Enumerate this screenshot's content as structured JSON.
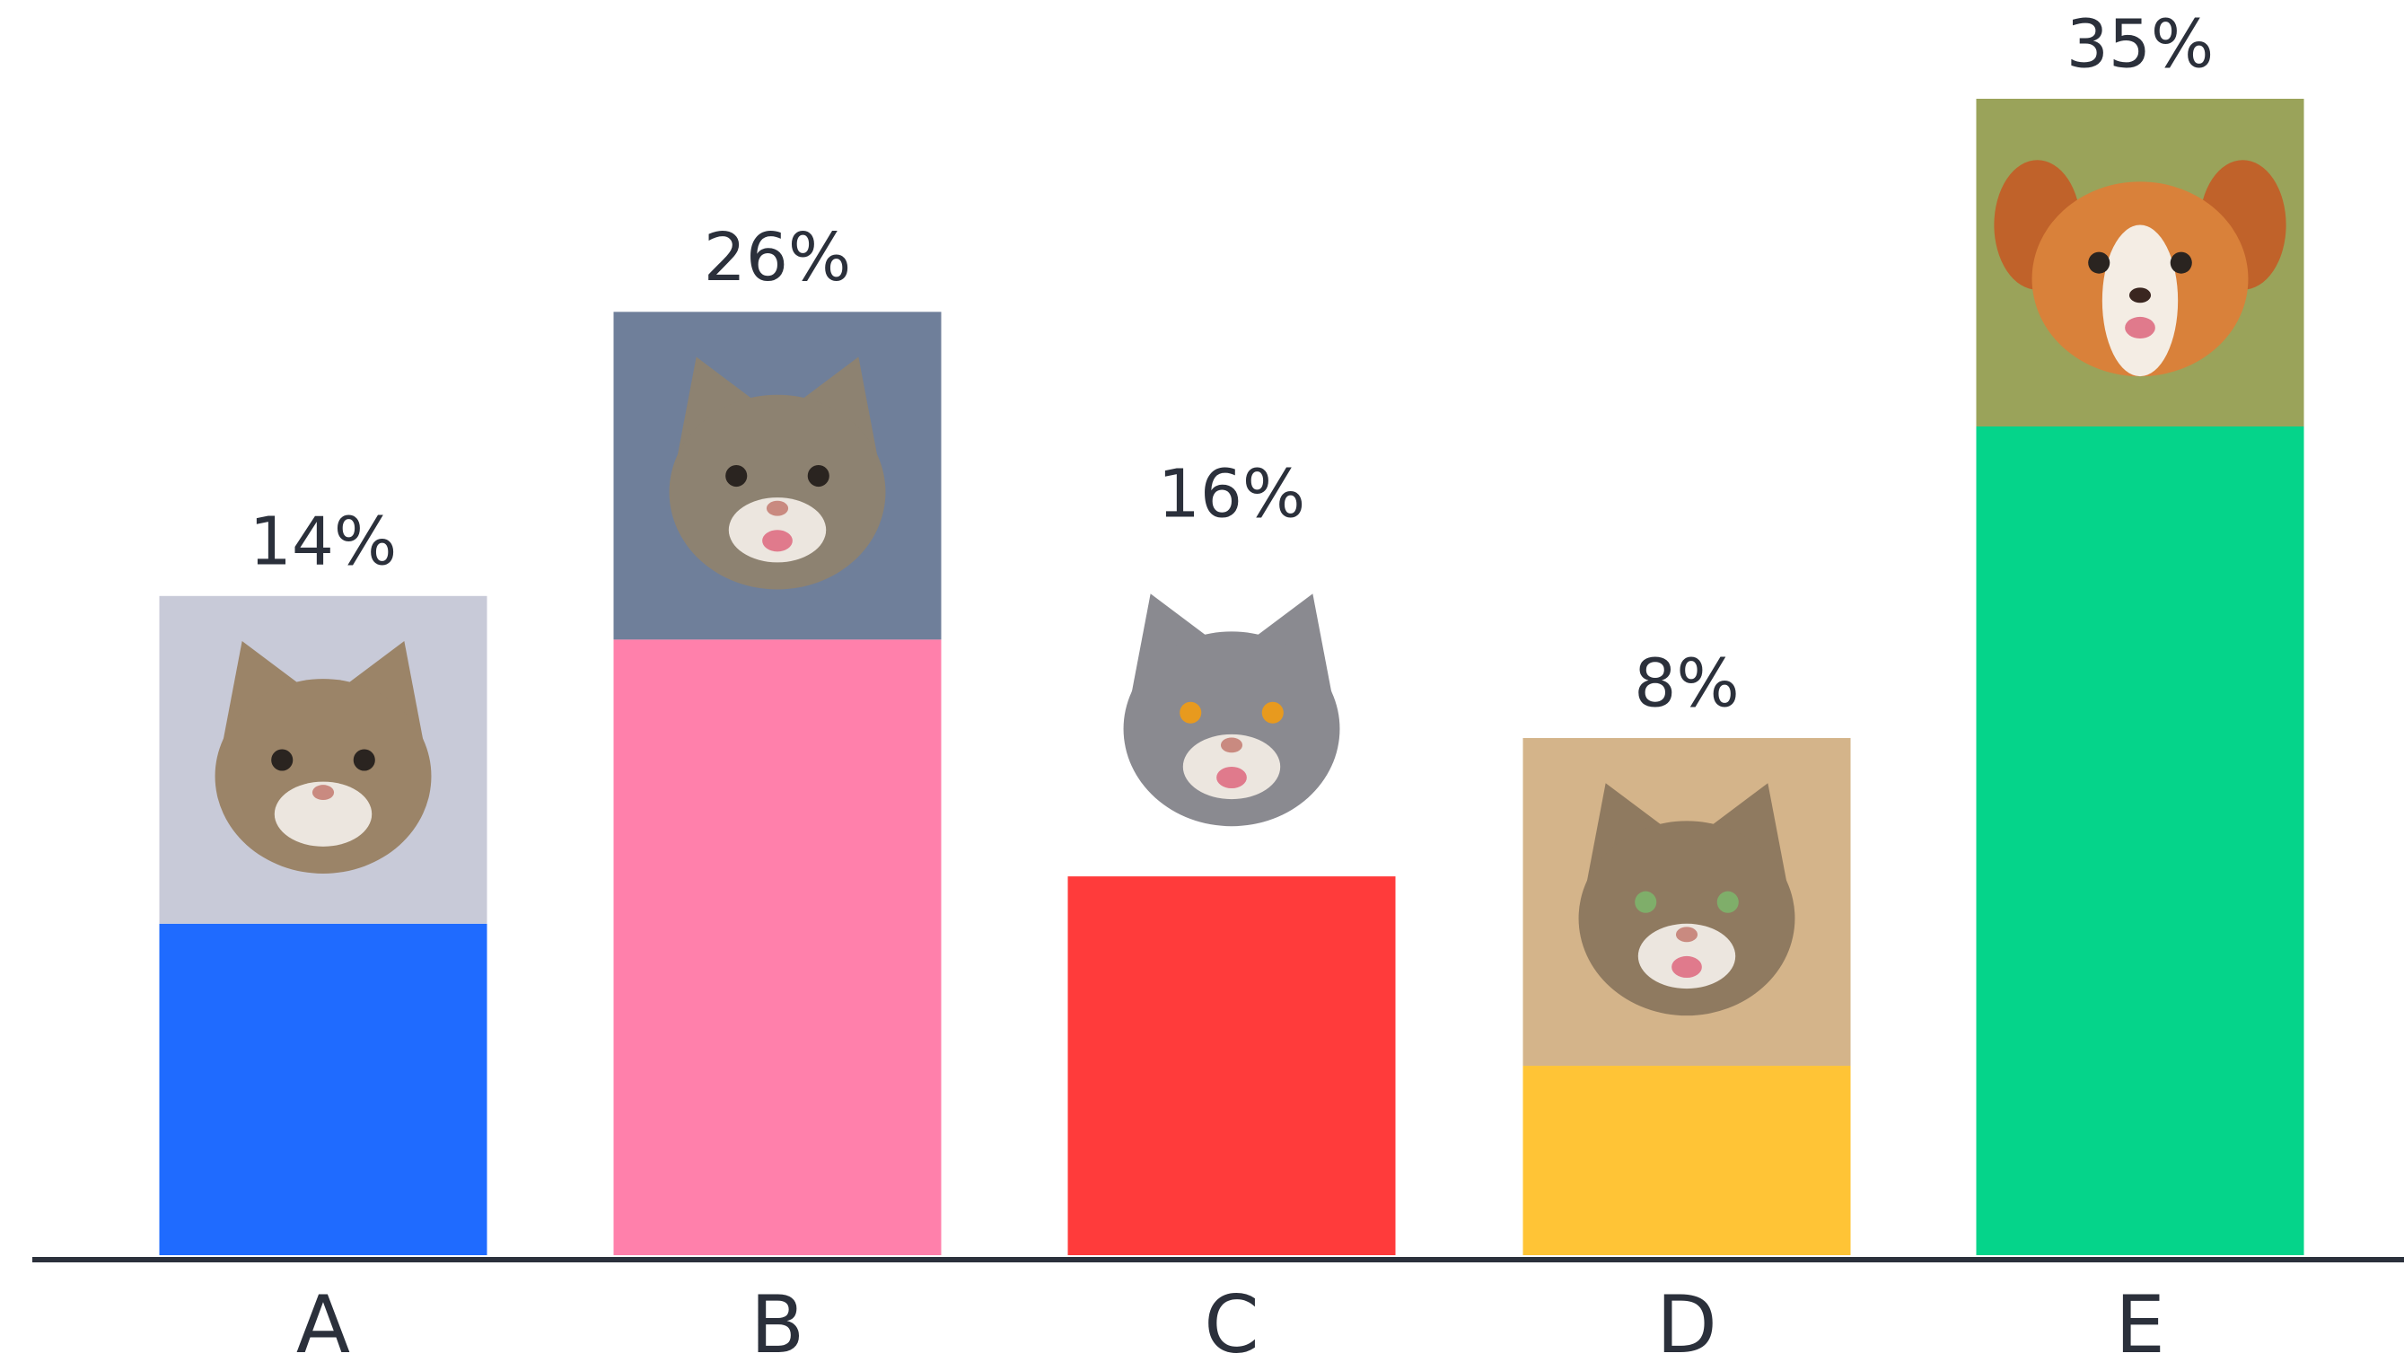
{
  "chart_data": {
    "type": "bar",
    "categories": [
      "A",
      "B",
      "C",
      "D",
      "E"
    ],
    "values": [
      14,
      26,
      16,
      8,
      35
    ],
    "value_labels": [
      "14%",
      "26%",
      "16%",
      "8%",
      "35%"
    ],
    "colors": [
      "#1f6bff",
      "#ff80ab",
      "#ff3b3b",
      "#ffc436",
      "#05d48a"
    ]
  }
}
